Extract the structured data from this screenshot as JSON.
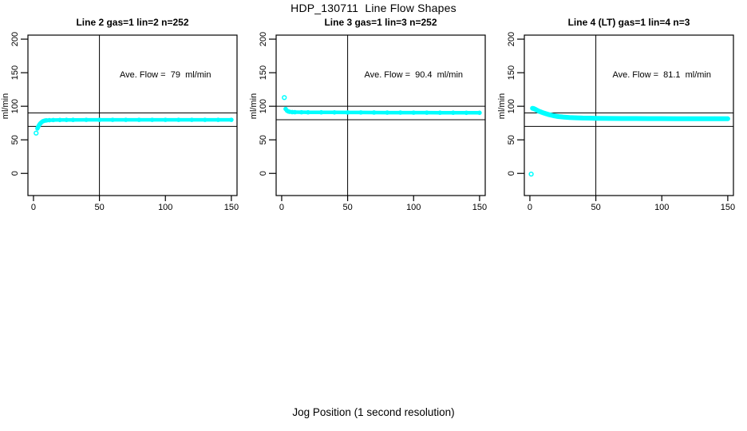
{
  "page": {
    "title": "HDP_130711  Line Flow Shapes",
    "xlabel": "Jog Position (1 second resolution)"
  },
  "colors": {
    "marker": "#00FFFF",
    "axis": "#000000",
    "background": "#FFFFFF"
  },
  "chart_data": [
    {
      "type": "scatter",
      "title": "Line 2 gas=1 lin=2 n=252",
      "ylabel": "ml/min",
      "annotation": "Ave. Flow =  79  ml/min",
      "ave_flow": 79,
      "n": 252,
      "line_id": 2,
      "gas": 1,
      "lin": 2,
      "xlim": [
        -4.2,
        154.3
      ],
      "ylim": [
        -33,
        206
      ],
      "xticks": [
        0,
        50,
        100,
        150
      ],
      "yticks": [
        0,
        50,
        100,
        150,
        200
      ],
      "grid": false,
      "legend": "none",
      "vline_x": 50,
      "hlines": [
        90,
        70
      ],
      "marker_color": "#00FFFF",
      "band_thickness": 4.5,
      "annotation_xy": [
        100,
        148
      ],
      "outliers": [
        [
          2,
          60
        ]
      ],
      "band": [
        [
          3,
          67
        ],
        [
          3.5,
          69
        ],
        [
          4,
          71
        ],
        [
          4.5,
          72.5
        ],
        [
          5,
          74
        ],
        [
          5.5,
          75
        ],
        [
          6,
          76
        ],
        [
          7,
          77.5
        ],
        [
          8,
          78.3
        ],
        [
          9,
          78.8
        ],
        [
          10,
          79
        ],
        [
          12,
          79.3
        ],
        [
          15,
          79.5
        ],
        [
          20,
          79.6
        ],
        [
          25,
          79.7
        ],
        [
          30,
          79.7
        ],
        [
          40,
          79.8
        ],
        [
          50,
          79.8
        ],
        [
          60,
          79.8
        ],
        [
          70,
          79.8
        ],
        [
          80,
          79.8
        ],
        [
          90,
          79.8
        ],
        [
          100,
          79.8
        ],
        [
          110,
          79.8
        ],
        [
          120,
          79.8
        ],
        [
          130,
          79.8
        ],
        [
          140,
          79.8
        ],
        [
          150,
          79.8
        ]
      ]
    },
    {
      "type": "scatter",
      "title": "Line 3 gas=1 lin=3 n=252",
      "ylabel": "ml/min",
      "annotation": "Ave. Flow =  90.4  ml/min",
      "ave_flow": 90.4,
      "n": 252,
      "line_id": 3,
      "gas": 1,
      "lin": 3,
      "xlim": [
        -4.2,
        154.3
      ],
      "ylim": [
        -33,
        206
      ],
      "xticks": [
        0,
        50,
        100,
        150
      ],
      "yticks": [
        0,
        50,
        100,
        150,
        200
      ],
      "grid": false,
      "legend": "none",
      "vline_x": 50,
      "hlines": [
        100,
        80
      ],
      "marker_color": "#00FFFF",
      "band_thickness": 4.5,
      "annotation_xy": [
        100,
        148
      ],
      "outliers": [
        [
          2,
          113
        ]
      ],
      "band": [
        [
          3,
          96
        ],
        [
          4,
          93.5
        ],
        [
          5,
          92.3
        ],
        [
          6,
          91.8
        ],
        [
          8,
          91.3
        ],
        [
          10,
          91.2
        ],
        [
          15,
          91.1
        ],
        [
          20,
          91
        ],
        [
          30,
          91
        ],
        [
          40,
          90.9
        ],
        [
          50,
          90.8
        ],
        [
          60,
          90.8
        ],
        [
          70,
          90.7
        ],
        [
          80,
          90.6
        ],
        [
          90,
          90.6
        ],
        [
          100,
          90.5
        ],
        [
          110,
          90.5
        ],
        [
          120,
          90.4
        ],
        [
          130,
          90.4
        ],
        [
          140,
          90.3
        ],
        [
          150,
          90.3
        ]
      ]
    },
    {
      "type": "scatter",
      "title": "Line 4 (LT) gas=1 lin=4 n=3",
      "ylabel": "ml/min",
      "annotation": "Ave. Flow =  81.1  ml/min",
      "ave_flow": 81.1,
      "n": 3,
      "line_id": 4,
      "gas": 1,
      "lin": 4,
      "xlim": [
        -4.2,
        154.3
      ],
      "ylim": [
        -33,
        206
      ],
      "xticks": [
        0,
        50,
        100,
        150
      ],
      "yticks": [
        0,
        50,
        100,
        150,
        200
      ],
      "grid": false,
      "legend": "none",
      "vline_x": 50,
      "hlines": [
        90,
        70
      ],
      "marker_color": "#00FFFF",
      "band_thickness": 6,
      "annotation_xy": [
        100,
        148
      ],
      "outliers": [
        [
          1,
          -1
        ]
      ],
      "band": [
        [
          2,
          97
        ],
        [
          3,
          96.5
        ],
        [
          4,
          95.5
        ],
        [
          5,
          94.5
        ],
        [
          6,
          93.5
        ],
        [
          7,
          92.5
        ],
        [
          8,
          91.8
        ],
        [
          9,
          91
        ],
        [
          10,
          90.3
        ],
        [
          12,
          89
        ],
        [
          14,
          87.8
        ],
        [
          16,
          86.8
        ],
        [
          18,
          85.9
        ],
        [
          20,
          85.2
        ],
        [
          22,
          84.6
        ],
        [
          24,
          84.2
        ],
        [
          26,
          83.8
        ],
        [
          28,
          83.5
        ],
        [
          30,
          83.2
        ],
        [
          35,
          82.8
        ],
        [
          40,
          82.5
        ],
        [
          45,
          82.3
        ],
        [
          50,
          82.1
        ],
        [
          60,
          81.9
        ],
        [
          70,
          81.8
        ],
        [
          80,
          81.7
        ],
        [
          90,
          81.6
        ],
        [
          100,
          81.6
        ],
        [
          110,
          81.5
        ],
        [
          120,
          81.5
        ],
        [
          130,
          81.5
        ],
        [
          140,
          81.5
        ],
        [
          150,
          81.5
        ]
      ]
    }
  ]
}
